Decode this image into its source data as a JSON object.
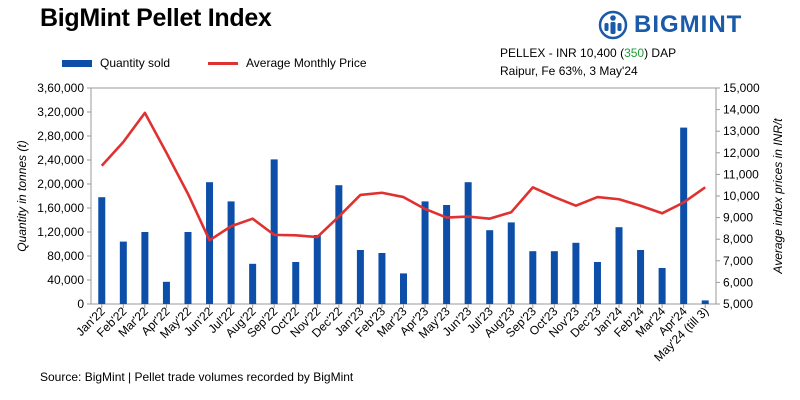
{
  "header": {
    "title": "BigMint Pellet Index",
    "brand": "BIGMINT",
    "info_prefix": "PELLEX - INR 10,400 (",
    "info_change": "350",
    "info_suffix": ") DAP",
    "info_line2": "Raipur, Fe 63%, 3 May'24"
  },
  "legend": {
    "bar_label": "Quantity sold",
    "line_label": "Average Monthly Price"
  },
  "footer": {
    "source": "Source: BigMint | Pellet trade volumes recorded by BigMint"
  },
  "colors": {
    "bar": "#0d4fa8",
    "line": "#e03131",
    "accent_green": "#1f9c3a",
    "brand": "#1a5aa8"
  },
  "chart_data": {
    "type": "bar",
    "title": "BigMint Pellet Index",
    "categories": [
      "Jan'22",
      "Feb'22",
      "Mar'22",
      "Apr'22",
      "May'22",
      "Jun'22",
      "Jul'22",
      "Aug'22",
      "Sep'22",
      "Oct'22",
      "Nov'22",
      "Dec'22",
      "Jan'23",
      "Feb'23",
      "Mar'23",
      "Apr'23",
      "May'23",
      "Jun'23",
      "Jul'23",
      "Aug'23",
      "Sep'23",
      "Oct'23",
      "Nov'23",
      "Dec'23",
      "Jan'24",
      "Feb'24",
      "Mar'24",
      "Apr'24",
      "May'24 (till 3)"
    ],
    "series": [
      {
        "name": "Quantity sold",
        "type": "bar",
        "axis": "left",
        "values": [
          178000,
          104000,
          120000,
          37000,
          120000,
          203000,
          171000,
          67000,
          241000,
          70000,
          115000,
          198000,
          90000,
          85000,
          51000,
          171000,
          165000,
          203000,
          123000,
          136000,
          88000,
          88000,
          102000,
          70000,
          128000,
          90000,
          60000,
          294000,
          6000
        ]
      },
      {
        "name": "Average Monthly Price",
        "type": "line",
        "axis": "right",
        "values": [
          11400,
          12500,
          13850,
          12000,
          10100,
          7950,
          8600,
          8950,
          8200,
          8180,
          8100,
          9050,
          10050,
          10150,
          9950,
          9400,
          9000,
          9050,
          8950,
          9250,
          10400,
          9950,
          9550,
          9950,
          9850,
          9550,
          9200,
          9700,
          10400
        ]
      }
    ],
    "ylabel": "Quantity in tonnes (t)",
    "y2label": "Average index prices in INR/t",
    "ylim": [
      0,
      360000
    ],
    "y_ticks": [
      "0",
      "40,000",
      "80,000",
      "1,20,000",
      "1,60,000",
      "2,00,000",
      "2,40,000",
      "2,80,000",
      "3,20,000",
      "3,60,000"
    ],
    "y2lim": [
      5000,
      15000
    ],
    "y2_ticks": [
      "5,000",
      "6,000",
      "7,000",
      "8,000",
      "9,000",
      "10,000",
      "11,000",
      "12,000",
      "13,000",
      "14,000",
      "15,000"
    ],
    "grid": false,
    "legend_position": "top-left"
  }
}
